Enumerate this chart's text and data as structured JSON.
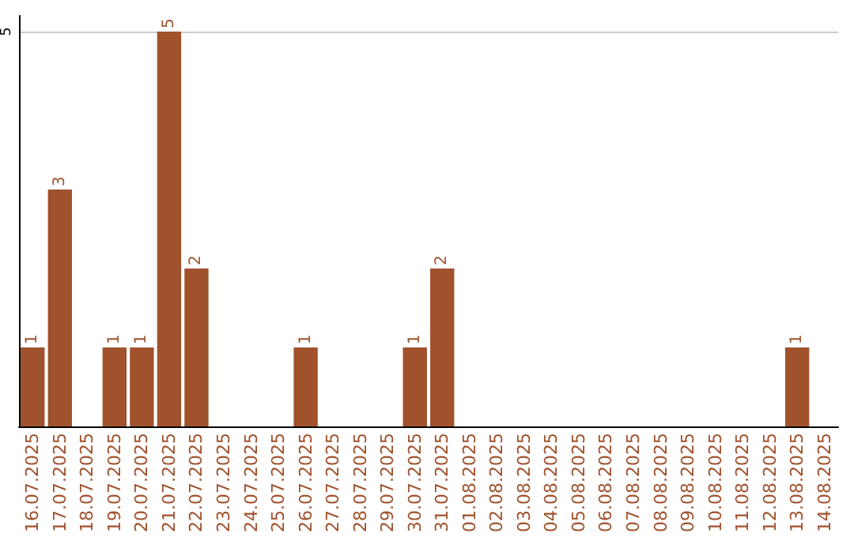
{
  "chart_data": {
    "type": "bar",
    "categories": [
      "16.07.2025",
      "17.07.2025",
      "18.07.2025",
      "19.07.2025",
      "20.07.2025",
      "21.07.2025",
      "22.07.2025",
      "23.07.2025",
      "24.07.2025",
      "25.07.2025",
      "26.07.2025",
      "27.07.2025",
      "28.07.2025",
      "29.07.2025",
      "30.07.2025",
      "31.07.2025",
      "01.08.2025",
      "02.08.2025",
      "03.08.2025",
      "04.08.2025",
      "05.08.2025",
      "06.08.2025",
      "07.08.2025",
      "08.08.2025",
      "09.08.2025",
      "10.08.2025",
      "11.08.2025",
      "12.08.2025",
      "13.08.2025",
      "14.08.2025"
    ],
    "values": [
      1,
      3,
      0,
      1,
      1,
      5,
      2,
      0,
      0,
      0,
      1,
      0,
      0,
      0,
      1,
      2,
      0,
      0,
      0,
      0,
      0,
      0,
      0,
      0,
      0,
      0,
      0,
      0,
      1,
      0
    ],
    "value_labels": [
      "1",
      "3",
      null,
      "1",
      "1",
      "5",
      "2",
      null,
      null,
      null,
      "1",
      null,
      null,
      null,
      "1",
      "2",
      null,
      null,
      null,
      null,
      null,
      null,
      null,
      null,
      null,
      null,
      null,
      null,
      "1",
      null
    ],
    "color": "#a0522d",
    "ylim": [
      0,
      5.2
    ],
    "yticks": [
      5
    ],
    "grid": "y"
  }
}
